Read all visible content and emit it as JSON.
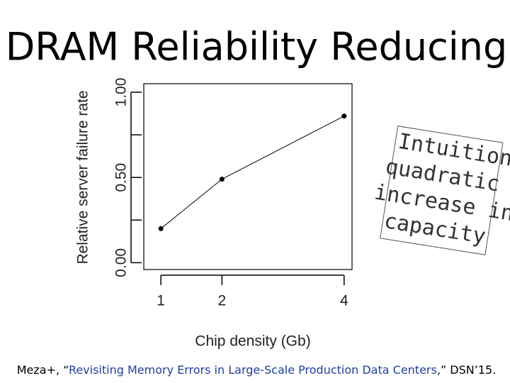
{
  "slide_title": "DRAM Reliability Reducing",
  "chart_data": {
    "type": "line",
    "x_label": "Chip density (Gb)",
    "y_label": "Relative server failure rate",
    "x": [
      1,
      2,
      4
    ],
    "series": [
      {
        "color": "#000000",
        "values": [
          0.2,
          0.49,
          0.86
        ]
      }
    ],
    "xlim": [
      0.72,
      4.13
    ],
    "ylim": [
      -0.04,
      1.05
    ],
    "xticks": [
      1,
      2,
      4
    ],
    "yticks": [
      {
        "value": 0,
        "label": "0.00"
      },
      {
        "value": 0.5,
        "label": "0.50"
      },
      {
        "value": 1,
        "label": "1.00"
      }
    ],
    "yminor_ticks": [
      0.25,
      0.75
    ]
  },
  "annotation": [
    "Intuition:",
    "quadratic",
    "increase in",
    "capacity"
  ],
  "citation": {
    "prefix": "Meza+, “",
    "title": "Revisiting Memory Errors in Large-Scale Production Data Centers",
    "suffix": ",” DSN’15."
  }
}
